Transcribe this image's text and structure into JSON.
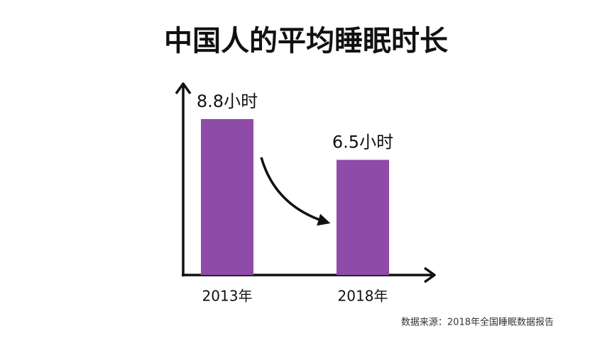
{
  "chart_data": {
    "type": "bar",
    "title": "中国人的平均睡眠时长",
    "categories": [
      "2013年",
      "2018年"
    ],
    "values": [
      8.8,
      6.5
    ],
    "value_labels": [
      "8.8小时",
      "6.5小时"
    ],
    "color": "#8e4ba8",
    "source": "数据来源：2018年全国睡眠数据报告"
  }
}
